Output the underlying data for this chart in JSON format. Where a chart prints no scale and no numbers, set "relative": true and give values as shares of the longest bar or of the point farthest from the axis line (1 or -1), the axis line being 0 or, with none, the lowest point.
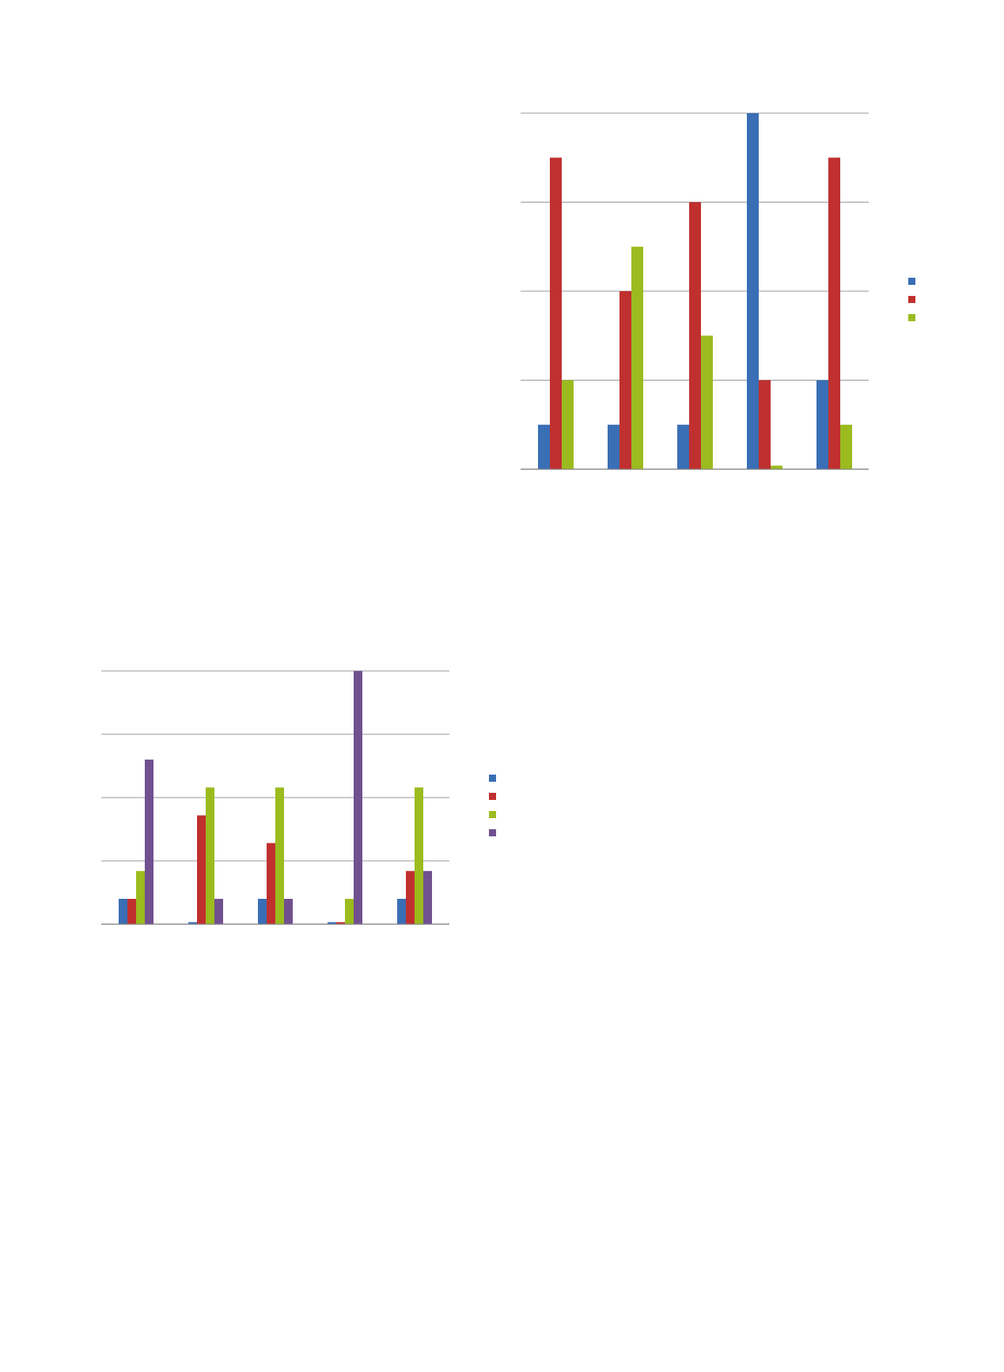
{
  "chart_data": [
    {
      "type": "bar",
      "relative": true,
      "categories": [
        null,
        null,
        null,
        null,
        null
      ],
      "grid": "y",
      "series": [
        {
          "color": "#3a6eb5",
          "values": [
            0.125,
            0.125,
            0.125,
            1,
            0.25
          ]
        },
        {
          "color": "#c0302f",
          "values": [
            0.875,
            0.5,
            0.75,
            0.25,
            0.875
          ]
        },
        {
          "color": "#9bbb1f",
          "values": [
            0.25,
            0.625,
            0.375,
            0.01,
            0.125
          ]
        }
      ]
    },
    {
      "type": "bar",
      "relative": true,
      "categories": [
        null,
        null,
        null,
        null,
        null
      ],
      "grid": "y",
      "series": [
        {
          "color": "#3a6eb5",
          "values": [
            0.1,
            0.008,
            0.1,
            0.008,
            0.1
          ]
        },
        {
          "color": "#c0302f",
          "values": [
            0.1,
            0.43,
            0.32,
            0.008,
            0.21
          ]
        },
        {
          "color": "#9bbb1f",
          "values": [
            0.21,
            0.54,
            0.54,
            0.1,
            0.54
          ]
        },
        {
          "color": "#71508f",
          "values": [
            0.65,
            0.1,
            0.1,
            1,
            0.21
          ]
        }
      ]
    }
  ]
}
